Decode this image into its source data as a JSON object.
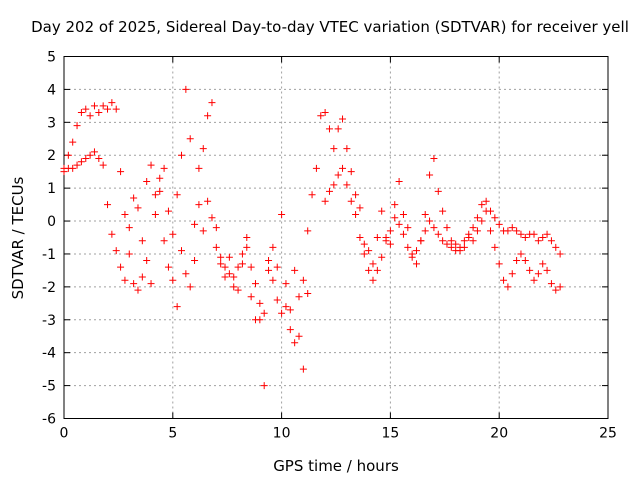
{
  "chart_data": {
    "type": "scatter",
    "title": "Day 202 of 2025, Sidereal Day-to-day VTEC variation (SDTVAR) for receiver yell",
    "xlabel": "GPS time / hours",
    "ylabel": "SDTVAR / TECUs",
    "xlim": [
      0,
      25
    ],
    "ylim": [
      -6,
      5
    ],
    "xticks": [
      0,
      5,
      10,
      15,
      20,
      25
    ],
    "yticks": [
      -6,
      -5,
      -4,
      -3,
      -2,
      -1,
      0,
      1,
      2,
      3,
      4,
      5
    ],
    "grid": true,
    "marker": "+",
    "series": [
      {
        "name": "SDTVAR",
        "color": "#ff0000",
        "x": [
          0.0,
          0.2,
          0.4,
          0.6,
          0.8,
          1.0,
          1.2,
          1.4,
          1.6,
          1.8,
          2.0,
          2.2,
          2.4,
          2.6,
          2.8,
          3.0,
          3.2,
          3.4,
          3.6,
          3.8,
          4.0,
          4.2,
          4.4,
          4.6,
          4.8,
          5.0,
          5.2,
          5.4,
          5.6,
          5.8,
          6.0,
          6.2,
          6.4,
          6.6,
          6.8,
          7.0,
          7.2,
          7.4,
          7.6,
          7.8,
          8.0,
          8.2,
          8.4,
          8.6,
          8.8,
          9.0,
          9.2,
          9.4,
          9.6,
          9.8,
          10.0,
          10.2,
          10.4,
          10.6,
          10.8,
          11.0,
          11.2,
          11.4,
          11.6,
          11.8,
          12.0,
          12.2,
          12.4,
          12.6,
          12.8,
          13.0,
          13.2,
          13.4,
          13.6,
          13.8,
          14.0,
          14.2,
          14.4,
          14.6,
          14.8,
          15.0,
          15.2,
          15.4,
          15.6,
          15.8,
          16.0,
          16.2,
          16.4,
          16.6,
          16.8,
          17.0,
          17.2,
          17.4,
          17.6,
          17.8,
          18.0,
          18.2,
          18.4,
          18.6,
          18.8,
          19.0,
          19.2,
          19.4,
          19.6,
          19.8,
          20.0,
          20.2,
          20.4,
          20.6,
          20.8,
          21.0,
          21.2,
          21.4,
          21.6,
          21.8,
          22.0,
          22.2,
          22.4,
          22.6,
          22.8,
          0.0,
          0.2,
          0.4,
          0.6,
          0.8,
          1.0,
          1.2,
          1.4,
          1.6,
          1.8,
          2.0,
          2.2,
          2.4,
          2.6,
          2.8,
          3.0,
          3.2,
          3.4,
          3.6,
          3.8,
          4.0,
          4.2,
          4.4,
          4.6,
          4.8,
          5.0,
          5.2,
          5.4,
          5.6,
          5.8,
          6.0,
          6.2,
          6.4,
          6.6,
          6.8,
          7.0,
          7.2,
          7.4,
          7.6,
          7.8,
          8.0,
          8.2,
          8.4,
          8.6,
          8.8,
          9.0,
          9.2,
          9.4,
          9.6,
          9.8,
          10.0,
          10.2,
          10.4,
          10.6,
          10.8,
          11.0,
          11.2,
          12.0,
          12.2,
          12.4,
          12.6,
          12.8,
          13.0,
          13.2,
          13.4,
          13.6,
          13.8,
          14.0,
          14.2,
          14.4,
          14.6,
          14.8,
          15.0,
          15.2,
          15.4,
          15.6,
          15.8,
          16.0,
          16.2,
          16.4,
          16.6,
          16.8,
          17.0,
          17.2,
          17.4,
          17.6,
          17.8,
          18.0,
          18.2,
          18.4,
          18.6,
          18.8,
          19.0,
          19.2,
          19.4,
          19.6,
          19.8,
          20.0,
          20.2,
          20.4,
          20.6,
          20.8,
          21.0,
          21.2,
          21.4,
          21.6,
          21.8,
          22.0,
          22.2,
          22.4,
          22.6,
          22.8
        ],
        "y": [
          1.6,
          2.0,
          2.4,
          2.9,
          3.3,
          3.4,
          3.2,
          3.5,
          3.3,
          3.5,
          3.4,
          3.6,
          3.4,
          1.5,
          0.2,
          -1.0,
          -1.9,
          -2.1,
          -1.7,
          1.2,
          1.7,
          0.8,
          1.3,
          1.6,
          0.3,
          -0.4,
          0.8,
          2.0,
          4.0,
          2.5,
          -0.1,
          1.6,
          2.2,
          3.2,
          3.6,
          -0.2,
          -1.3,
          -1.7,
          -1.1,
          -2.0,
          -1.4,
          -1.0,
          -0.5,
          -2.3,
          -3.0,
          -3.0,
          -5.0,
          -1.5,
          -0.8,
          -1.4,
          0.2,
          -2.6,
          -3.3,
          -3.7,
          -3.5,
          -4.5,
          -0.3,
          0.8,
          1.6,
          3.2,
          3.3,
          2.8,
          2.2,
          2.8,
          3.1,
          2.2,
          1.5,
          0.8,
          0.4,
          -0.7,
          -0.9,
          -1.3,
          -0.5,
          0.3,
          -0.5,
          -0.7,
          0.5,
          1.2,
          0.2,
          -0.2,
          -1.0,
          -1.3,
          -0.6,
          0.2,
          1.4,
          1.9,
          0.9,
          0.3,
          -0.2,
          -0.6,
          -0.7,
          -0.9,
          -0.8,
          -0.5,
          -0.6,
          -0.3,
          0.0,
          0.3,
          -0.3,
          -0.8,
          -1.3,
          -1.8,
          -2.0,
          -1.6,
          -1.2,
          -1.0,
          -1.2,
          -1.5,
          -1.8,
          -1.6,
          -1.3,
          -1.5,
          -1.9,
          -2.1,
          -2.0,
          1.5,
          1.6,
          1.6,
          1.7,
          1.8,
          1.9,
          2.0,
          2.1,
          1.9,
          1.7,
          0.5,
          -0.4,
          -0.9,
          -1.4,
          -1.8,
          -0.2,
          0.7,
          0.4,
          -0.6,
          -1.2,
          -1.9,
          0.2,
          0.9,
          -0.6,
          -1.4,
          -1.8,
          -2.6,
          -0.9,
          -1.6,
          -2.0,
          -1.2,
          0.5,
          -0.3,
          0.6,
          0.1,
          -0.8,
          -1.1,
          -1.4,
          -1.6,
          -1.7,
          -2.1,
          -1.3,
          -0.8,
          -1.4,
          -1.9,
          -2.5,
          -2.8,
          -1.2,
          -1.8,
          -2.4,
          -2.8,
          -1.9,
          -2.7,
          -1.5,
          -2.3,
          -1.8,
          -2.2,
          0.6,
          0.9,
          1.1,
          1.4,
          1.6,
          1.1,
          0.6,
          0.2,
          -0.5,
          -1.0,
          -1.5,
          -1.8,
          -1.5,
          -1.1,
          -0.6,
          -0.3,
          0.1,
          -0.1,
          -0.4,
          -0.8,
          -1.1,
          -0.9,
          -0.6,
          -0.3,
          0.0,
          -0.2,
          -0.4,
          -0.6,
          -0.7,
          -0.8,
          -0.9,
          -0.8,
          -0.6,
          -0.4,
          -0.2,
          0.1,
          0.5,
          0.6,
          0.3,
          0.1,
          -0.1,
          -0.3,
          -0.3,
          -0.2,
          -0.3,
          -0.4,
          -0.5,
          -0.4,
          -0.4,
          -0.6,
          -0.5,
          -0.4,
          -0.6,
          -0.8,
          -1.0
        ]
      }
    ]
  }
}
